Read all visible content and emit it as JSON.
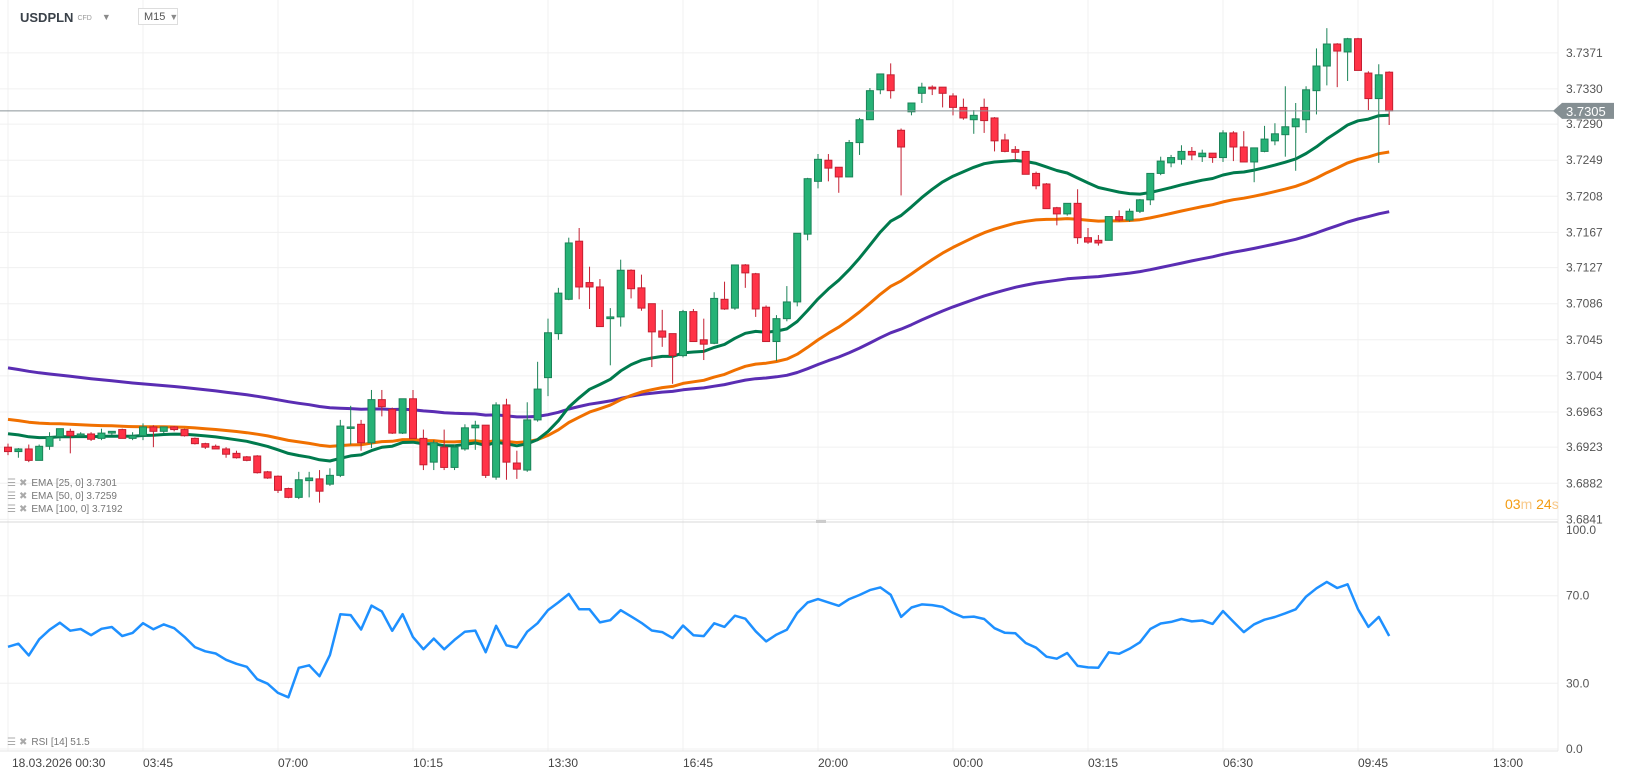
{
  "header": {
    "symbol": "USDPLN",
    "instrument_type": "CFD",
    "timeframe": "M15"
  },
  "legend": {
    "ema25": {
      "label": "EMA",
      "params": "[25,  0]",
      "value": "3.7301"
    },
    "ema50": {
      "label": "EMA",
      "params": "[50,  0]",
      "value": "3.7259"
    },
    "ema100": {
      "label": "EMA",
      "params": "[100,  0]",
      "value": "3.7192"
    },
    "rsi": {
      "label": "RSI",
      "params": "[14]",
      "value": "51.5"
    }
  },
  "countdown": {
    "minutes": "03",
    "min_unit": "m",
    "seconds": "24",
    "sec_unit": "s"
  },
  "current_price": "3.7305",
  "colors": {
    "up": "#26b276",
    "up_border": "#1b8358",
    "down": "#ff3347",
    "down_border": "#c41f31",
    "ema25": "#007a4d",
    "ema50": "#f07000",
    "ema100": "#5a2db3",
    "rsi": "#1e90ff",
    "price_tag": "#858f93"
  },
  "chart_data": {
    "type": "candlestick",
    "title": "USDPLN M15",
    "price_axis_ticks": [
      "3.7371",
      "3.7330",
      "3.7290",
      "3.7249",
      "3.7208",
      "3.7167",
      "3.7127",
      "3.7086",
      "3.7045",
      "3.7004",
      "3.6963",
      "3.6923",
      "3.6882",
      "3.6841"
    ],
    "price_range": [
      3.6838,
      3.7431
    ],
    "time_axis_ticks": [
      "18.03.2026  00:30",
      "03:45",
      "07:00",
      "10:15",
      "13:30",
      "16:45",
      "20:00",
      "00:00",
      "03:15",
      "06:30",
      "09:45",
      "13:00"
    ],
    "bars_per_tick": 13,
    "future_bars": 13,
    "candles_ohlc": [
      [
        3.6923,
        3.6927,
        3.6914,
        3.6918
      ],
      [
        3.6918,
        3.6922,
        3.6911,
        3.6921
      ],
      [
        3.6921,
        3.6926,
        3.6906,
        3.6908
      ],
      [
        3.6908,
        3.6926,
        3.6908,
        3.6924
      ],
      [
        3.6924,
        3.694,
        3.692,
        3.6935
      ],
      [
        3.6935,
        3.6944,
        3.693,
        3.6944
      ],
      [
        3.6941,
        3.6944,
        3.6916,
        3.6936
      ],
      [
        3.6936,
        3.694,
        3.6935,
        3.6938
      ],
      [
        3.6938,
        3.694,
        3.693,
        3.6932
      ],
      [
        3.6933,
        3.6944,
        3.6931,
        3.6939
      ],
      [
        3.6939,
        3.6941,
        3.6937,
        3.6941
      ],
      [
        3.6943,
        3.6944,
        3.6938,
        3.6933
      ],
      [
        3.6933,
        3.694,
        3.6931,
        3.6936
      ],
      [
        3.6936,
        3.695,
        3.6931,
        3.6946
      ],
      [
        3.6946,
        3.6948,
        3.6923,
        3.6941
      ],
      [
        3.6941,
        3.6944,
        3.6939,
        3.6946
      ],
      [
        3.6946,
        3.6947,
        3.6941,
        3.6943
      ],
      [
        3.6943,
        3.6944,
        3.6935,
        3.6936
      ],
      [
        3.6933,
        3.6934,
        3.6926,
        3.6927
      ],
      [
        3.6927,
        3.6928,
        3.6921,
        3.6923
      ],
      [
        3.6924,
        3.6926,
        3.6921,
        3.6921
      ],
      [
        3.6921,
        3.6923,
        3.6911,
        3.6915
      ],
      [
        3.6916,
        3.6919,
        3.691,
        3.6911
      ],
      [
        3.6912,
        3.6913,
        3.6907,
        3.6908
      ],
      [
        3.6913,
        3.6914,
        3.6893,
        3.6894
      ],
      [
        3.6895,
        3.6896,
        3.6887,
        3.6888
      ],
      [
        3.689,
        3.6891,
        3.6871,
        3.6874
      ],
      [
        3.6876,
        3.6877,
        3.6865,
        3.6866
      ],
      [
        3.6866,
        3.6895,
        3.6864,
        3.6886
      ],
      [
        3.6885,
        3.6895,
        3.6866,
        3.6888
      ],
      [
        3.6887,
        3.6897,
        3.686,
        3.6873
      ],
      [
        3.6881,
        3.6899,
        3.6879,
        3.6891
      ],
      [
        3.6891,
        3.6954,
        3.6889,
        3.6947
      ],
      [
        3.6945,
        3.697,
        3.6926,
        3.6946
      ],
      [
        3.6949,
        3.6954,
        3.6919,
        3.6928
      ],
      [
        3.6928,
        3.6988,
        3.6922,
        3.6977
      ],
      [
        3.6977,
        3.6988,
        3.6958,
        3.6969
      ],
      [
        3.6966,
        3.6968,
        3.6938,
        3.6939
      ],
      [
        3.6939,
        3.6978,
        3.6938,
        3.6978
      ],
      [
        3.6978,
        3.6988,
        3.6933,
        3.6933
      ],
      [
        3.6933,
        3.6943,
        3.6897,
        3.6903
      ],
      [
        3.6906,
        3.6931,
        3.6897,
        3.6928
      ],
      [
        3.6923,
        3.6943,
        3.6897,
        3.69
      ],
      [
        3.69,
        3.6926,
        3.6897,
        3.6923
      ],
      [
        3.6921,
        3.6949,
        3.6919,
        3.6945
      ],
      [
        3.6945,
        3.6953,
        3.692,
        3.6948
      ],
      [
        3.6948,
        3.6948,
        3.6888,
        3.6891
      ],
      [
        3.6889,
        3.6974,
        3.6886,
        3.6971
      ],
      [
        3.6971,
        3.6978,
        3.6886,
        3.6906
      ],
      [
        3.6905,
        3.6919,
        3.6887,
        3.6898
      ],
      [
        3.6897,
        3.6974,
        3.6895,
        3.6954
      ],
      [
        3.6954,
        3.702,
        3.6952,
        3.6989
      ],
      [
        3.7002,
        3.7069,
        3.6981,
        3.7053
      ],
      [
        3.7052,
        3.7104,
        3.7045,
        3.7098
      ],
      [
        3.7091,
        3.7161,
        3.709,
        3.7155
      ],
      [
        3.7157,
        3.7172,
        3.7091,
        3.7105
      ],
      [
        3.711,
        3.7128,
        3.708,
        3.7105
      ],
      [
        3.7105,
        3.7114,
        3.706,
        3.706
      ],
      [
        3.7069,
        3.7081,
        3.7016,
        3.7071
      ],
      [
        3.7071,
        3.7136,
        3.706,
        3.7124
      ],
      [
        3.7124,
        3.7125,
        3.7092,
        3.7103
      ],
      [
        3.7104,
        3.7119,
        3.7078,
        3.7081
      ],
      [
        3.7086,
        3.7086,
        3.7014,
        3.7054
      ],
      [
        3.7055,
        3.7079,
        3.7037,
        3.7048
      ],
      [
        3.7052,
        3.7052,
        3.6995,
        3.7027
      ],
      [
        3.7027,
        3.7079,
        3.7025,
        3.7077
      ],
      [
        3.7077,
        3.708,
        3.7043,
        3.7043
      ],
      [
        3.7045,
        3.7069,
        3.7022,
        3.704
      ],
      [
        3.7041,
        3.7099,
        3.704,
        3.7092
      ],
      [
        3.7091,
        3.7111,
        3.7079,
        3.708
      ],
      [
        3.7081,
        3.713,
        3.7079,
        3.713
      ],
      [
        3.713,
        3.7131,
        3.7104,
        3.7121
      ],
      [
        3.712,
        3.7121,
        3.7071,
        3.708
      ],
      [
        3.7082,
        3.7084,
        3.7043,
        3.7043
      ],
      [
        3.7043,
        3.7073,
        3.7021,
        3.7069
      ],
      [
        3.7069,
        3.7106,
        3.7066,
        3.7088
      ],
      [
        3.7088,
        3.7166,
        3.7083,
        3.7166
      ],
      [
        3.7165,
        3.7229,
        3.7158,
        3.7228
      ],
      [
        3.7225,
        3.7256,
        3.7217,
        3.725
      ],
      [
        3.7249,
        3.7256,
        3.7225,
        3.724
      ],
      [
        3.7241,
        3.7241,
        3.7212,
        3.723
      ],
      [
        3.723,
        3.7272,
        3.723,
        3.7269
      ],
      [
        3.7269,
        3.7297,
        3.7255,
        3.7295
      ],
      [
        3.7295,
        3.7331,
        3.7295,
        3.7328
      ],
      [
        3.7329,
        3.7347,
        3.7324,
        3.7347
      ],
      [
        3.7346,
        3.7359,
        3.7319,
        3.7328
      ],
      [
        3.7283,
        3.7285,
        3.7209,
        3.7264
      ],
      [
        3.7304,
        3.7314,
        3.73,
        3.7314
      ],
      [
        3.7325,
        3.7337,
        3.7314,
        3.7332
      ],
      [
        3.7332,
        3.7334,
        3.7323,
        3.733
      ],
      [
        3.7332,
        3.7332,
        3.7309,
        3.7325
      ],
      [
        3.7322,
        3.7325,
        3.73,
        3.7309
      ],
      [
        3.7309,
        3.7319,
        3.7295,
        3.7297
      ],
      [
        3.7295,
        3.7306,
        3.7279,
        3.73
      ],
      [
        3.7309,
        3.7319,
        3.728,
        3.7294
      ],
      [
        3.7297,
        3.7298,
        3.7259,
        3.7271
      ],
      [
        3.7272,
        3.7279,
        3.7258,
        3.7259
      ],
      [
        3.7261,
        3.7265,
        3.7249,
        3.7258
      ],
      [
        3.7259,
        3.7259,
        3.7233,
        3.7233
      ],
      [
        3.7234,
        3.7236,
        3.7216,
        3.722
      ],
      [
        3.7222,
        3.7223,
        3.7194,
        3.7194
      ],
      [
        3.7195,
        3.7196,
        3.7175,
        3.7188
      ],
      [
        3.7188,
        3.72,
        3.7186,
        3.72
      ],
      [
        3.72,
        3.7216,
        3.7154,
        3.7161
      ],
      [
        3.7161,
        3.7172,
        3.7154,
        3.7156
      ],
      [
        3.7158,
        3.7164,
        3.7152,
        3.7155
      ],
      [
        3.7158,
        3.7185,
        3.7158,
        3.7185
      ],
      [
        3.7185,
        3.7192,
        3.7179,
        3.7181
      ],
      [
        3.7181,
        3.7194,
        3.7179,
        3.7191
      ],
      [
        3.7191,
        3.7205,
        3.7189,
        3.7204
      ],
      [
        3.7204,
        3.7234,
        3.7198,
        3.7234
      ],
      [
        3.7234,
        3.7253,
        3.7232,
        3.7248
      ],
      [
        3.7246,
        3.7255,
        3.7241,
        3.7252
      ],
      [
        3.725,
        3.7266,
        3.7244,
        3.7259
      ],
      [
        3.7259,
        3.7264,
        3.7249,
        3.7255
      ],
      [
        3.7253,
        3.7261,
        3.7247,
        3.7257
      ],
      [
        3.7257,
        3.7257,
        3.7246,
        3.7252
      ],
      [
        3.7252,
        3.7283,
        3.7247,
        3.728
      ],
      [
        3.728,
        3.7282,
        3.7248,
        3.7264
      ],
      [
        3.7264,
        3.7282,
        3.7247,
        3.7247
      ],
      [
        3.7247,
        3.7263,
        3.7224,
        3.7263
      ],
      [
        3.7259,
        3.7288,
        3.7258,
        3.7273
      ],
      [
        3.7271,
        3.7291,
        3.7266,
        3.7279
      ],
      [
        3.7278,
        3.7333,
        3.7253,
        3.7287
      ],
      [
        3.7287,
        3.7314,
        3.7237,
        3.7296
      ],
      [
        3.7295,
        3.7333,
        3.728,
        3.7329
      ],
      [
        3.7328,
        3.7376,
        3.7301,
        3.7356
      ],
      [
        3.7356,
        3.7399,
        3.7334,
        3.7381
      ],
      [
        3.7381,
        3.7382,
        3.7332,
        3.7373
      ],
      [
        3.7372,
        3.7388,
        3.7339,
        3.7387
      ],
      [
        3.7387,
        3.7388,
        3.7351,
        3.7351
      ],
      [
        3.7348,
        3.735,
        3.7306,
        3.7319
      ],
      [
        3.7319,
        3.7358,
        3.7246,
        3.7346
      ],
      [
        3.7349,
        3.735,
        3.7289,
        3.7305
      ]
    ],
    "ema_seeds": {
      "ema25": 3.694,
      "ema50": 3.6956,
      "ema100": 3.7015
    },
    "rsi": {
      "period": 14,
      "axis_ticks": [
        "100.0",
        "70.0",
        "30.0",
        "0.0"
      ],
      "range": [
        0,
        100
      ],
      "seed_avg_gain": 0.00042,
      "seed_avg_loss": 0.00048
    }
  }
}
